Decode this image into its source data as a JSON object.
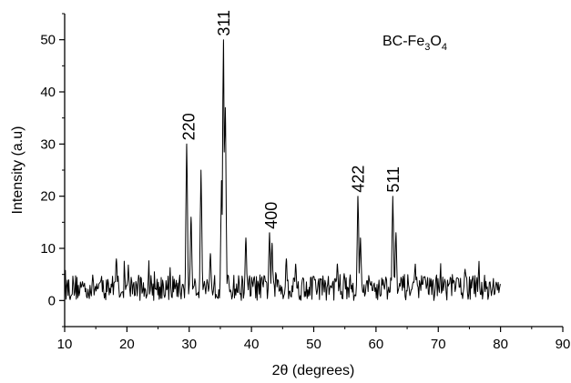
{
  "chart_data": {
    "type": "line",
    "xlabel": "2θ (degrees)",
    "ylabel": "Intensity (a.u)",
    "xlim": [
      10,
      90
    ],
    "ylim": [
      -5,
      55
    ],
    "x_ticks": [
      10,
      20,
      30,
      40,
      50,
      60,
      70,
      80,
      90
    ],
    "y_ticks": [
      0,
      10,
      20,
      30,
      40,
      50
    ],
    "x_tick_labels": [
      "10",
      "20",
      "30",
      "40",
      "50",
      "60",
      "70",
      "80",
      "90"
    ],
    "y_tick_labels": [
      "0",
      "10",
      "20",
      "30",
      "40",
      "50"
    ],
    "grid": false,
    "line_color": "#000000",
    "sample_label": {
      "prefix": "BC-Fe",
      "sub1": "3",
      "mid": "O",
      "sub2": "4"
    },
    "peak_labels": [
      {
        "text": "220",
        "x": 30.0,
        "y": 30
      },
      {
        "text": "311",
        "x": 35.6,
        "y": 50
      },
      {
        "text": "400",
        "x": 43.2,
        "y": 13
      },
      {
        "text": "422",
        "x": 57.2,
        "y": 20
      },
      {
        "text": "511",
        "x": 62.8,
        "y": 20
      }
    ],
    "series": [
      {
        "noise_range": [
          10,
          80
        ],
        "noise_band": [
          0,
          5
        ],
        "peaks": [
          {
            "x": 18.3,
            "y": 8
          },
          {
            "x": 29.6,
            "y": 30
          },
          {
            "x": 30.3,
            "y": 16
          },
          {
            "x": 31.9,
            "y": 25
          },
          {
            "x": 33.4,
            "y": 9
          },
          {
            "x": 35.2,
            "y": 23
          },
          {
            "x": 35.5,
            "y": 50
          },
          {
            "x": 35.8,
            "y": 37
          },
          {
            "x": 39.1,
            "y": 12
          },
          {
            "x": 42.9,
            "y": 13
          },
          {
            "x": 43.3,
            "y": 11
          },
          {
            "x": 45.6,
            "y": 8
          },
          {
            "x": 47.1,
            "y": 7
          },
          {
            "x": 53.8,
            "y": 7
          },
          {
            "x": 57.1,
            "y": 20
          },
          {
            "x": 57.5,
            "y": 12
          },
          {
            "x": 62.7,
            "y": 20
          },
          {
            "x": 63.2,
            "y": 13
          },
          {
            "x": 66.3,
            "y": 7
          },
          {
            "x": 74.3,
            "y": 6
          }
        ]
      }
    ]
  }
}
